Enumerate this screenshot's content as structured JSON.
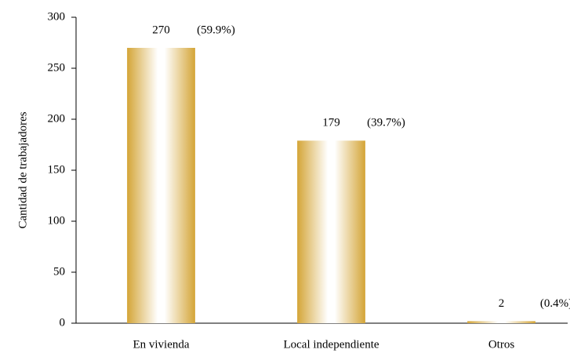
{
  "chart_data": {
    "type": "bar",
    "y_axis_label": "Cantidad de trabajadores",
    "categories": [
      "En vivienda",
      "Local independiente",
      "Otros"
    ],
    "values": [
      270,
      179,
      2
    ],
    "percent_labels": [
      "(59.9%)",
      "(39.7%)",
      "(0.4%)"
    ],
    "color": "#d4a537",
    "ylim": [
      0,
      300
    ],
    "yticks": [
      0,
      50,
      100,
      150,
      200,
      250,
      300
    ],
    "grid": false
  }
}
